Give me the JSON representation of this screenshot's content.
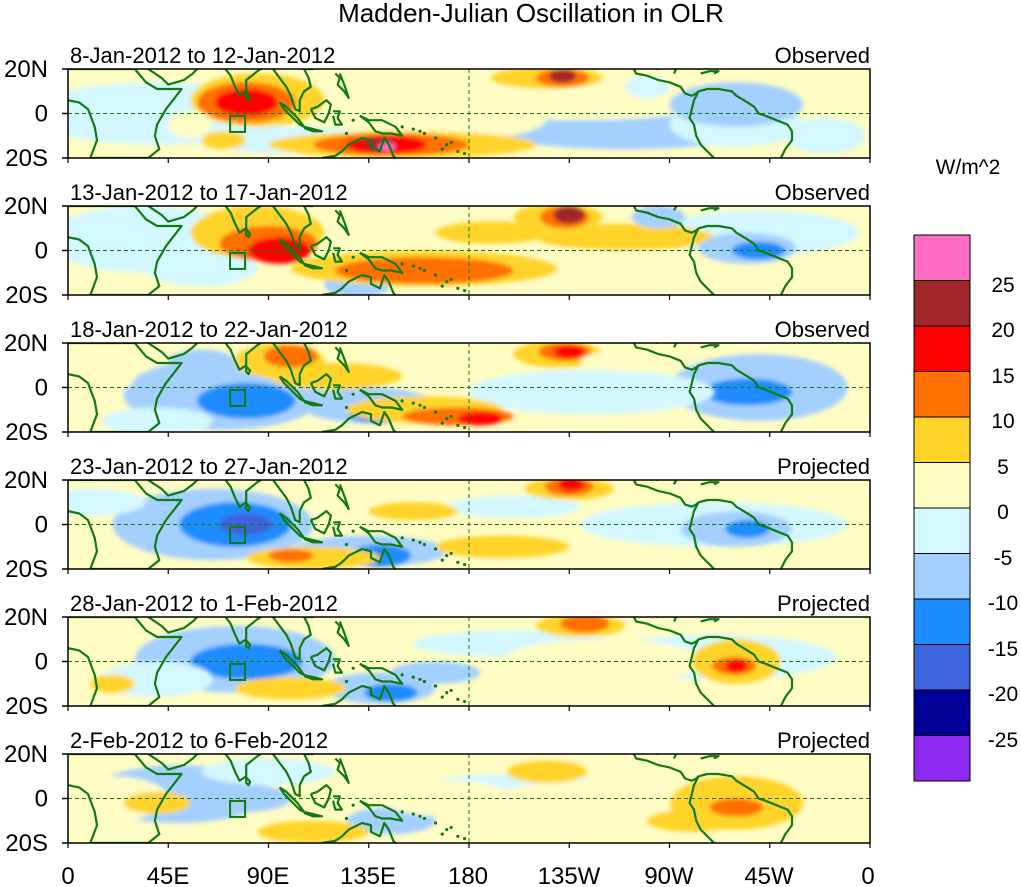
{
  "title": "Madden-Julian Oscillation in OLR",
  "units_label": "W/m^2",
  "lat_labels": [
    "20N",
    "0",
    "20S"
  ],
  "lon_labels": [
    "0",
    "45E",
    "90E",
    "135E",
    "180",
    "135W",
    "90W",
    "45W",
    "0"
  ],
  "panels": [
    {
      "date_range": "8-Jan-2012 to 12-Jan-2012",
      "status": "Observed"
    },
    {
      "date_range": "13-Jan-2012 to 17-Jan-2012",
      "status": "Observed"
    },
    {
      "date_range": "18-Jan-2012 to 22-Jan-2012",
      "status": "Observed"
    },
    {
      "date_range": "23-Jan-2012 to 27-Jan-2012",
      "status": "Projected"
    },
    {
      "date_range": "28-Jan-2012 to 1-Feb-2012",
      "status": "Projected"
    },
    {
      "date_range": "2-Feb-2012 to 6-Feb-2012",
      "status": "Projected"
    }
  ],
  "colorbar": {
    "labels": [
      "25",
      "20",
      "15",
      "10",
      "5",
      "0",
      "-5",
      "-10",
      "-15",
      "-20",
      "-25"
    ],
    "colors": [
      "#ff6ec4",
      "#a0262a",
      "#ff0000",
      "#ff7000",
      "#ffd42a",
      "#fffcc4",
      "#d4f8ff",
      "#a4d0ff",
      "#1e8cff",
      "#3c64dc",
      "#000096",
      "#8c28f0"
    ]
  }
}
